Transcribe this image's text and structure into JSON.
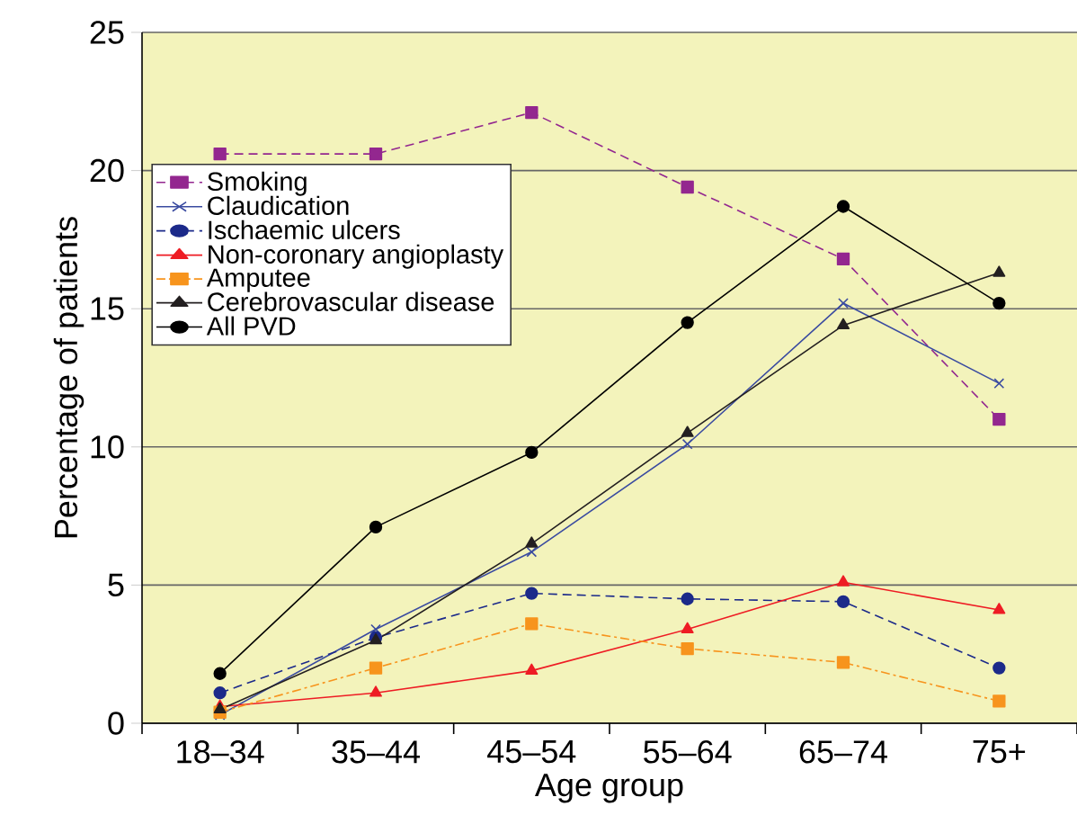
{
  "chart_data": {
    "type": "line",
    "xlabel": "Age group",
    "ylabel": "Percentage of patients",
    "categories": [
      "18–34",
      "35–44",
      "45–54",
      "55–64",
      "65–74",
      "75+"
    ],
    "ylim": [
      0,
      25
    ],
    "yticks": [
      0,
      5,
      10,
      15,
      20,
      25
    ],
    "grid": "y",
    "legend": "top left",
    "series": [
      {
        "name": "Smoking",
        "color": "#93278f",
        "marker": "square",
        "line_style": "dashed",
        "values": [
          20.6,
          20.6,
          22.1,
          19.4,
          16.8,
          11.0
        ]
      },
      {
        "name": "Claudication",
        "color": "#3a4ba0",
        "marker": "cross",
        "line_style": "solid",
        "values": [
          0.3,
          3.4,
          6.2,
          10.1,
          15.2,
          12.3
        ]
      },
      {
        "name": "Ischaemic ulcers",
        "color": "#1c2a8a",
        "marker": "circle",
        "line_style": "dashed",
        "values": [
          1.1,
          3.1,
          4.7,
          4.5,
          4.4,
          2.0
        ]
      },
      {
        "name": "Non-coronary angioplasty",
        "color": "#ee1c24",
        "marker": "triangle",
        "line_style": "solid",
        "values": [
          0.6,
          1.1,
          1.9,
          3.4,
          5.1,
          4.1
        ]
      },
      {
        "name": "Amputee",
        "color": "#f7941d",
        "marker": "square",
        "line_style": "dashdot",
        "values": [
          0.4,
          2.0,
          3.6,
          2.7,
          2.2,
          0.8
        ]
      },
      {
        "name": "Cerebrovascular disease",
        "color": "#231f20",
        "marker": "triangle",
        "line_style": "solid",
        "values": [
          0.5,
          3.0,
          6.5,
          10.5,
          14.4,
          16.3
        ]
      },
      {
        "name": "All PVD",
        "color": "#000000",
        "marker": "circle",
        "line_style": "solid",
        "values": [
          1.8,
          7.1,
          9.8,
          14.5,
          18.7,
          15.2
        ]
      }
    ]
  }
}
